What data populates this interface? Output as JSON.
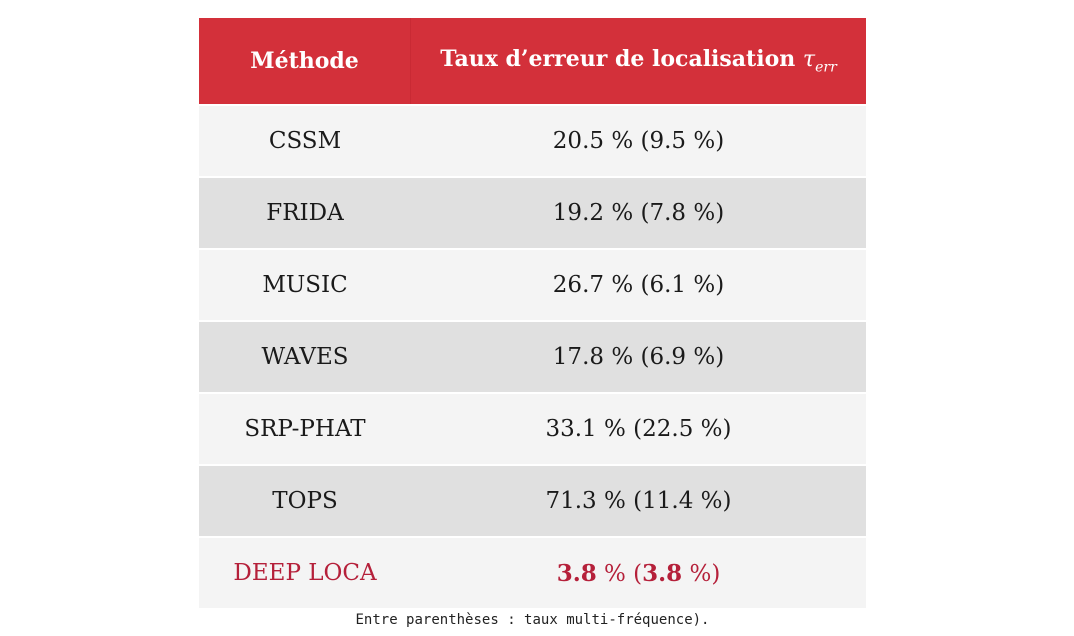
{
  "table": {
    "headers": {
      "method": "Méthode",
      "error_rate": "Taux d’erreur de localisation",
      "symbol": "τ",
      "symbol_subscript": "err"
    },
    "rows": [
      {
        "method": "CSSM",
        "value": "20.5 % (9.5 %)"
      },
      {
        "method": "FRIDA",
        "value": "19.2 % (7.8 %)"
      },
      {
        "method": "MUSIC",
        "value": "26.7 % (6.1 %)"
      },
      {
        "method": "WAVES",
        "value": "17.8 % (6.9 %)"
      },
      {
        "method": "SRP-PHAT",
        "value": "33.1 % (22.5 %)"
      },
      {
        "method": "TOPS",
        "value": "71.3 % (11.4 %)"
      },
      {
        "method": "DEEP LOCA",
        "value_main": "3.8",
        "value_mid": " % (",
        "value_multi": "3.8",
        "value_end": " %)"
      }
    ],
    "footnote": "Entre parenthèses : taux multi-fréquence)."
  },
  "colors": {
    "header_bg": "#d3303a",
    "highlight_text": "#b5203a",
    "row_light": "#f4f4f4",
    "row_dark": "#e0e0e0"
  }
}
